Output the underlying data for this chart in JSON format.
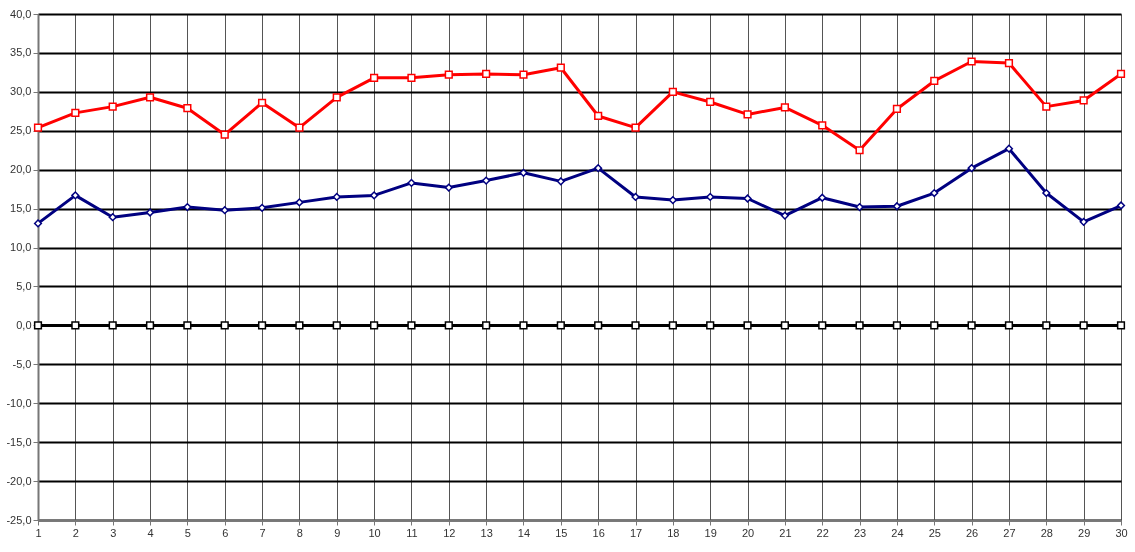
{
  "chart_data": {
    "type": "line",
    "x": [
      1,
      2,
      3,
      4,
      5,
      6,
      7,
      8,
      9,
      10,
      11,
      12,
      13,
      14,
      15,
      16,
      17,
      18,
      19,
      20,
      21,
      22,
      23,
      24,
      25,
      26,
      27,
      28,
      29,
      30
    ],
    "xlim": [
      1,
      30
    ],
    "xticks": [
      1,
      2,
      3,
      4,
      5,
      6,
      7,
      8,
      9,
      10,
      11,
      12,
      13,
      14,
      15,
      16,
      17,
      18,
      19,
      20,
      21,
      22,
      23,
      24,
      25,
      26,
      27,
      28,
      29,
      30
    ],
    "ylim": [
      -25,
      40
    ],
    "yticks": [
      {
        "value": -25,
        "label": "-25,0"
      },
      {
        "value": -20,
        "label": "-20,0"
      },
      {
        "value": -15,
        "label": "-15,0"
      },
      {
        "value": -10,
        "label": "-10,0"
      },
      {
        "value": -5,
        "label": "-5,0"
      },
      {
        "value": 0,
        "label": "0,0"
      },
      {
        "value": 5,
        "label": "5,0"
      },
      {
        "value": 10,
        "label": "10,0"
      },
      {
        "value": 15,
        "label": "15,0"
      },
      {
        "value": 20,
        "label": "20,0"
      },
      {
        "value": 25,
        "label": "25,0"
      },
      {
        "value": 30,
        "label": "30,0"
      },
      {
        "value": 35,
        "label": "35,0"
      },
      {
        "value": 40,
        "label": "40,0"
      }
    ],
    "grid": true,
    "legend": false,
    "line_style": "solid",
    "series": [
      {
        "color": "#ff0000",
        "marker": "square",
        "values": [
          25.4,
          27.3,
          28.1,
          29.3,
          27.9,
          24.5,
          28.6,
          25.4,
          29.3,
          31.8,
          31.8,
          32.2,
          32.3,
          32.2,
          33.1,
          26.9,
          25.4,
          30.0,
          28.7,
          27.1,
          28.0,
          25.7,
          22.5,
          27.8,
          31.4,
          33.9,
          33.7,
          28.1,
          28.9,
          32.3
        ]
      },
      {
        "color": "#000080",
        "marker": "diamond",
        "values": [
          13.1,
          16.7,
          13.9,
          14.5,
          15.2,
          14.8,
          15.1,
          15.8,
          16.5,
          16.7,
          18.3,
          17.7,
          18.6,
          19.6,
          18.5,
          20.2,
          16.5,
          16.1,
          16.5,
          16.3,
          14.1,
          16.4,
          15.2,
          15.3,
          17.0,
          20.2,
          22.7,
          17.0,
          13.3,
          15.4
        ]
      },
      {
        "color": "#000000",
        "marker": "square",
        "values": [
          0,
          0,
          0,
          0,
          0,
          0,
          0,
          0,
          0,
          0,
          0,
          0,
          0,
          0,
          0,
          0,
          0,
          0,
          0,
          0,
          0,
          0,
          0,
          0,
          0,
          0,
          0,
          0,
          0,
          0
        ]
      }
    ]
  }
}
